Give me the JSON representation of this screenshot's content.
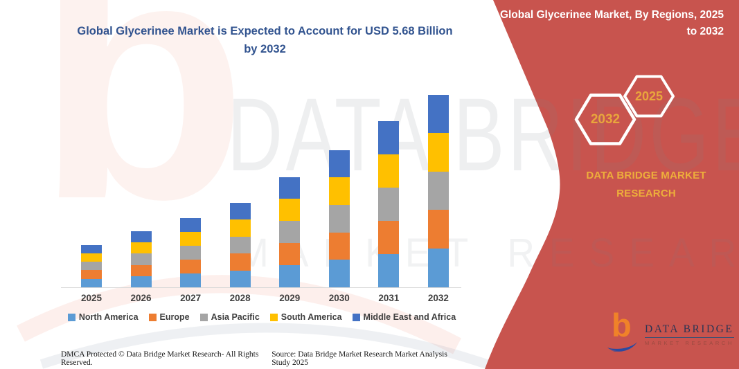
{
  "page": {
    "title": "Global Glycerinee Market is Expected to Account for USD 5.68 Billion by 2032"
  },
  "side_panel": {
    "heading": "Global Glycerinee Market, By Regions, 2025 to 2032",
    "hexagon_years": {
      "back": "2032",
      "front": "2025"
    },
    "brand_caption": "DATA BRIDGE MARKET RESEARCH",
    "colors": {
      "panel_bg": "#C8544E",
      "gold": "#EDAE3B",
      "heading_text": "#FFFFFF",
      "hexagon_outline": "#FFFFFF"
    }
  },
  "logo": {
    "wordmark": "DATA BRIDGE",
    "tagline": "MARKET RESEARCH",
    "icon_b_color": "#F08229",
    "icon_swoosh_color": "#2B4AA0"
  },
  "watermark": {
    "logo_letter": "b",
    "line1": "DATA BRIDGE",
    "line2": "MARKET RESEARCH"
  },
  "footer": {
    "dmca": "DMCA Protected © Data Bridge Market Research-  All Rights Reserved.",
    "source": "Source: Data Bridge Market Research  Market Analysis Study 2025"
  },
  "chart_data": {
    "type": "bar",
    "stacked": true,
    "title": "",
    "xlabel": "",
    "ylabel": "",
    "unit": "USD Billion",
    "categories": [
      "2025",
      "2026",
      "2027",
      "2028",
      "2029",
      "2030",
      "2031",
      "2032"
    ],
    "series": [
      {
        "name": "North America",
        "color": "#5B9BD5",
        "values": [
          0.25,
          0.33,
          0.41,
          0.5,
          0.65,
          0.81,
          0.98,
          1.14
        ]
      },
      {
        "name": "Europe",
        "color": "#ED7D31",
        "values": [
          0.25,
          0.33,
          0.41,
          0.5,
          0.65,
          0.81,
          0.98,
          1.14
        ]
      },
      {
        "name": "Asia Pacific",
        "color": "#A5A5A5",
        "values": [
          0.25,
          0.33,
          0.41,
          0.5,
          0.65,
          0.81,
          0.98,
          1.13
        ]
      },
      {
        "name": "South America",
        "color": "#FFC000",
        "values": [
          0.25,
          0.33,
          0.41,
          0.5,
          0.65,
          0.81,
          0.98,
          1.14
        ]
      },
      {
        "name": "Middle East and Africa",
        "color": "#4472C4",
        "values": [
          0.25,
          0.33,
          0.41,
          0.5,
          0.65,
          0.81,
          0.98,
          1.13
        ]
      }
    ],
    "totals_usd_billion": [
      1.25,
      1.65,
      2.05,
      2.5,
      3.25,
      4.05,
      4.9,
      5.68
    ],
    "ylim": [
      0,
      6
    ],
    "grid": false,
    "y_axis_visible": false,
    "legend_position": "bottom"
  }
}
